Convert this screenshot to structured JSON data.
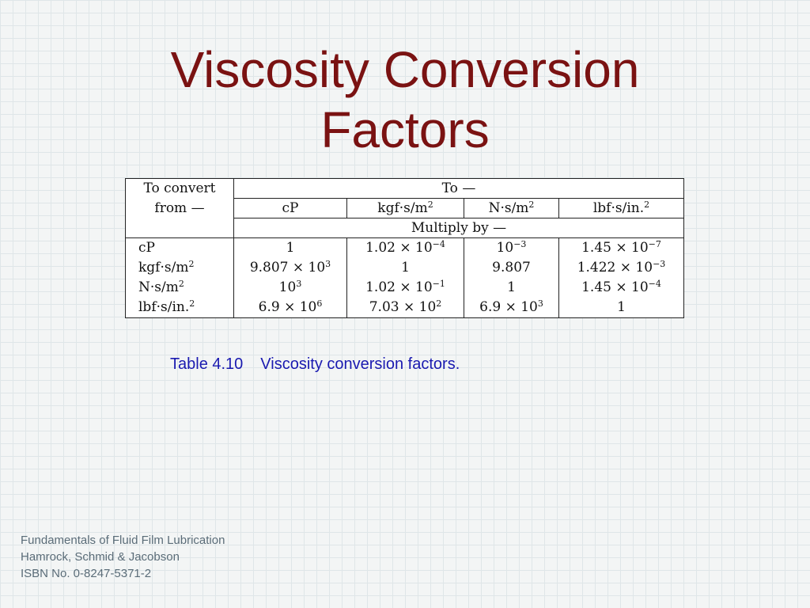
{
  "title": {
    "line1": "Viscosity Conversion",
    "line2": "Factors"
  },
  "table": {
    "header": {
      "from_line1": "To convert",
      "from_line2": "from —",
      "to": "To —",
      "multiply": "Multiply by —"
    },
    "columns": [
      {
        "base": "cP",
        "sup": ""
      },
      {
        "base": "kgf·s/m",
        "sup": "2"
      },
      {
        "base": "N·s/m",
        "sup": "2"
      },
      {
        "base": "lbf·s/in.",
        "sup": "2"
      }
    ],
    "rows": [
      {
        "label": {
          "base": "cP",
          "sup": ""
        },
        "cells": [
          {
            "base": "1",
            "sup": ""
          },
          {
            "base": "1.02 × 10",
            "sup": "−4"
          },
          {
            "base": "10",
            "sup": "−3"
          },
          {
            "base": "1.45 × 10",
            "sup": "−7"
          }
        ]
      },
      {
        "label": {
          "base": "kgf·s/m",
          "sup": "2"
        },
        "cells": [
          {
            "base": "9.807 × 10",
            "sup": "3"
          },
          {
            "base": "1",
            "sup": ""
          },
          {
            "base": "9.807",
            "sup": ""
          },
          {
            "base": "1.422 × 10",
            "sup": "−3"
          }
        ]
      },
      {
        "label": {
          "base": "N·s/m",
          "sup": "2"
        },
        "cells": [
          {
            "base": "10",
            "sup": "3"
          },
          {
            "base": "1.02 × 10",
            "sup": "−1"
          },
          {
            "base": "1",
            "sup": ""
          },
          {
            "base": "1.45 × 10",
            "sup": "−4"
          }
        ]
      },
      {
        "label": {
          "base": "lbf·s/in.",
          "sup": "2"
        },
        "cells": [
          {
            "base": "6.9 × 10",
            "sup": "6"
          },
          {
            "base": "7.03 × 10",
            "sup": "2"
          },
          {
            "base": "6.9 × 10",
            "sup": "3"
          },
          {
            "base": "1",
            "sup": ""
          }
        ]
      }
    ]
  },
  "caption": {
    "number": "Table 4.10",
    "text": "Viscosity conversion factors."
  },
  "footer": {
    "line1": "Fundamentals of Fluid Film Lubrication",
    "line2": "Hamrock, Schmid & Jacobson",
    "line3": "ISBN No. 0-8247-5371-2"
  }
}
